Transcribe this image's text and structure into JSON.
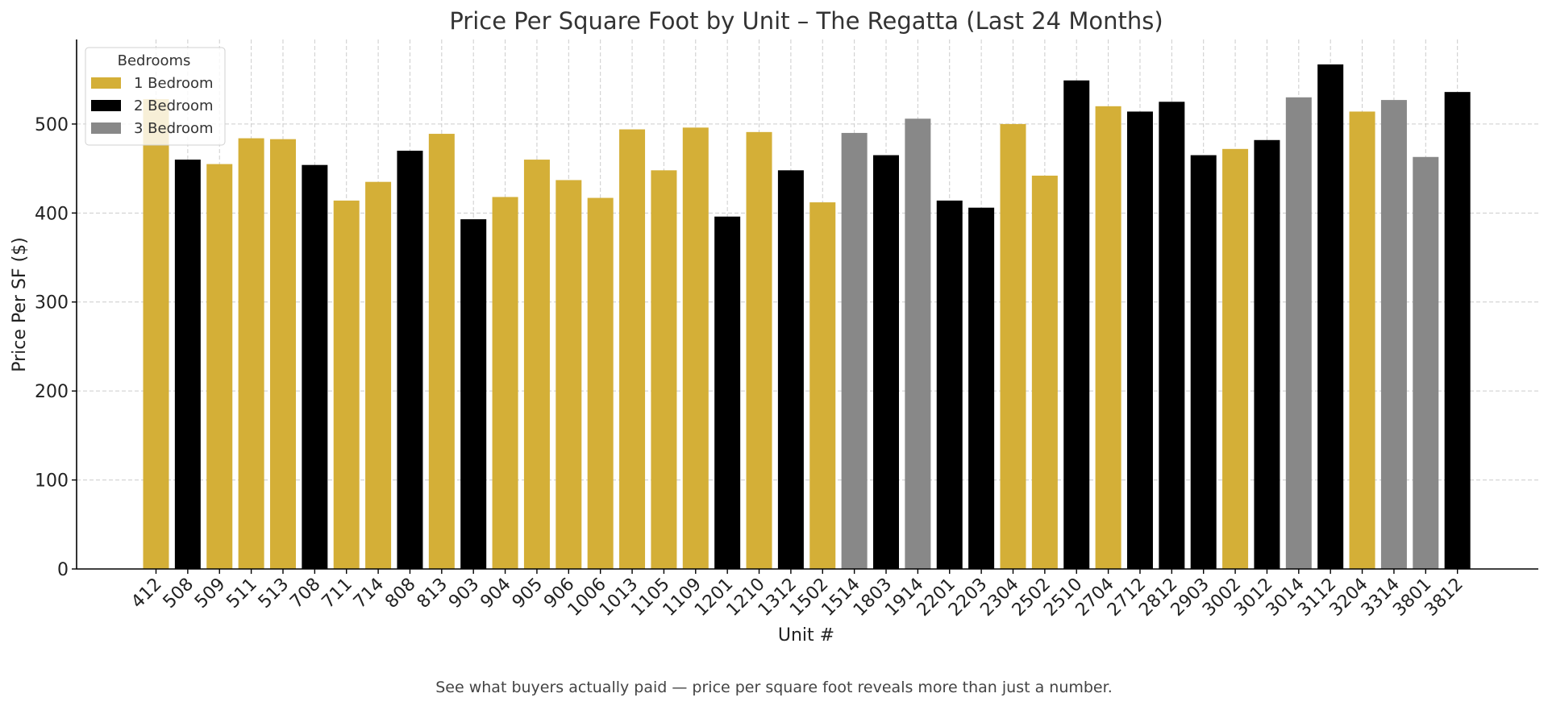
{
  "chart_data": {
    "type": "bar",
    "title": "Price Per Square Foot by Unit – The Regatta (Last 24 Months)",
    "xlabel": "Unit #",
    "ylabel": "Price Per SF ($)",
    "ylim": [
      0,
      595
    ],
    "yticks": [
      0,
      100,
      200,
      300,
      400,
      500
    ],
    "grid": true,
    "legend": {
      "title": "Bedrooms",
      "placement": "top-left",
      "entries": [
        {
          "name": "1 Bedroom",
          "color": "#D4AF37"
        },
        {
          "name": "2 Bedroom",
          "color": "#000000"
        },
        {
          "name": "3 Bedroom",
          "color": "#888888"
        }
      ]
    },
    "categories": [
      "412",
      "508",
      "509",
      "511",
      "513",
      "708",
      "711",
      "714",
      "808",
      "813",
      "903",
      "904",
      "905",
      "906",
      "1006",
      "1013",
      "1105",
      "1109",
      "1201",
      "1210",
      "1312",
      "1502",
      "1514",
      "1803",
      "1914",
      "2201",
      "2203",
      "2304",
      "2502",
      "2510",
      "2704",
      "2712",
      "2812",
      "2903",
      "3002",
      "3012",
      "3014",
      "3112",
      "3204",
      "3314",
      "3801",
      "3812"
    ],
    "values": [
      528,
      460,
      455,
      484,
      483,
      454,
      414,
      435,
      470,
      489,
      393,
      418,
      460,
      437,
      417,
      494,
      448,
      496,
      396,
      491,
      448,
      412,
      490,
      465,
      506,
      414,
      406,
      500,
      442,
      549,
      520,
      514,
      525,
      465,
      472,
      482,
      530,
      567,
      514,
      527,
      463,
      536
    ],
    "bedrooms": [
      "1 Bedroom",
      "2 Bedroom",
      "1 Bedroom",
      "1 Bedroom",
      "1 Bedroom",
      "2 Bedroom",
      "1 Bedroom",
      "1 Bedroom",
      "2 Bedroom",
      "1 Bedroom",
      "2 Bedroom",
      "1 Bedroom",
      "1 Bedroom",
      "1 Bedroom",
      "1 Bedroom",
      "1 Bedroom",
      "1 Bedroom",
      "1 Bedroom",
      "2 Bedroom",
      "1 Bedroom",
      "2 Bedroom",
      "1 Bedroom",
      "3 Bedroom",
      "2 Bedroom",
      "3 Bedroom",
      "2 Bedroom",
      "2 Bedroom",
      "1 Bedroom",
      "1 Bedroom",
      "2 Bedroom",
      "1 Bedroom",
      "2 Bedroom",
      "2 Bedroom",
      "2 Bedroom",
      "1 Bedroom",
      "2 Bedroom",
      "3 Bedroom",
      "2 Bedroom",
      "1 Bedroom",
      "3 Bedroom",
      "3 Bedroom",
      "2 Bedroom"
    ]
  },
  "footer": {
    "caption": "See what buyers actually paid — price per square foot reveals more than just a number."
  }
}
